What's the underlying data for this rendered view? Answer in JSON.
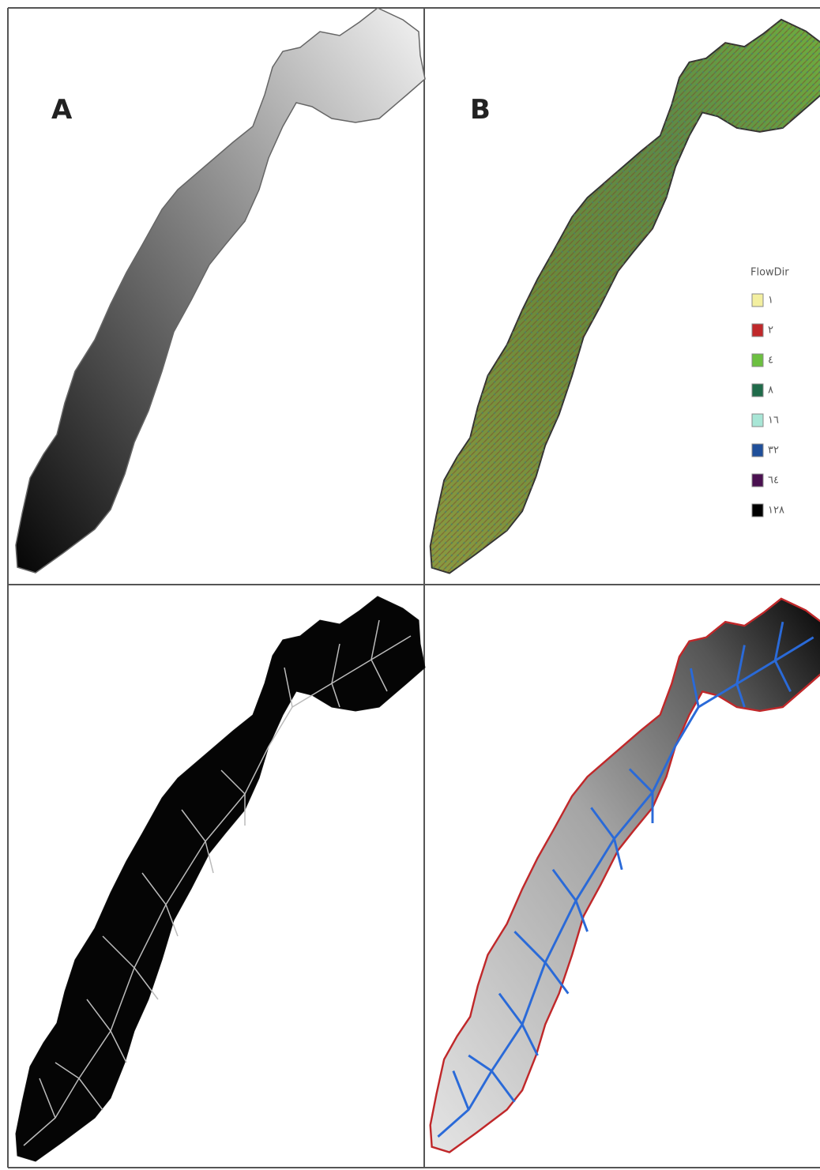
{
  "panels": [
    {
      "label": "A"
    },
    {
      "label": "B"
    }
  ],
  "legend": {
    "title": "FlowDir",
    "items": [
      {
        "label": "١",
        "color": "#f3efa0"
      },
      {
        "label": "٢",
        "color": "#c0282a"
      },
      {
        "label": "٤",
        "color": "#6cc040"
      },
      {
        "label": "٨",
        "color": "#1f6b4a"
      },
      {
        "label": "١٦",
        "color": "#a8e6d6"
      },
      {
        "label": "٣٢",
        "color": "#1f4f9a"
      },
      {
        "label": "٦٤",
        "color": "#4a1050"
      },
      {
        "label": "١٢٨",
        "color": "#000000"
      }
    ]
  }
}
